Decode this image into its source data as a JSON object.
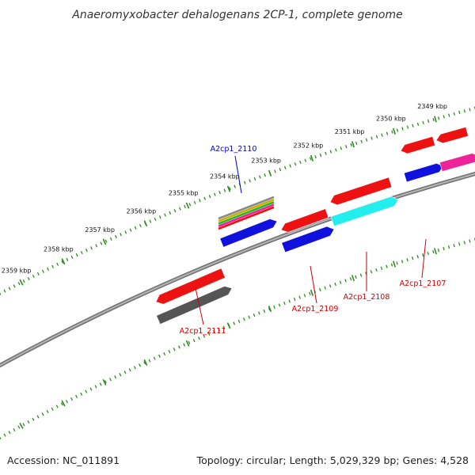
{
  "title": "Anaeromyxobacter dehalogenans 2CP-1, complete genome",
  "footer": {
    "accession": "Accession: NC_011891",
    "summary": "Topology: circular; Length: 5,029,329 bp; Genes: 4,528"
  },
  "colors": {
    "backbone": "#8a8a8a",
    "tick": "#2d8a1e",
    "forward_label": "#0000cc",
    "reverse_label": "#cc0000",
    "red_gene": "#ee1111",
    "blue_gene": "#1111dd",
    "cyan_gene": "#22eeee",
    "gray_gene": "#555555",
    "magenta_gene": "#ee2299"
  },
  "ticks": [
    {
      "label": "2349 kbp"
    },
    {
      "label": "2350 kbp"
    },
    {
      "label": "2351 kbp"
    },
    {
      "label": "2352 kbp"
    },
    {
      "label": "2353 kbp"
    },
    {
      "label": "2354 kbp"
    },
    {
      "label": "2355 kbp"
    },
    {
      "label": "2356 kbp"
    },
    {
      "label": "2357 kbp"
    },
    {
      "label": "2358 kbp"
    },
    {
      "label": "2359 kbp"
    }
  ],
  "gene_labels": [
    {
      "name": "A2cp1_2110",
      "strand": "forward"
    },
    {
      "name": "A2cp1_2109",
      "strand": "reverse"
    },
    {
      "name": "A2cp1_2108",
      "strand": "reverse"
    },
    {
      "name": "A2cp1_2107",
      "strand": "reverse"
    },
    {
      "name": "A2cp1_2111",
      "strand": "reverse"
    }
  ]
}
